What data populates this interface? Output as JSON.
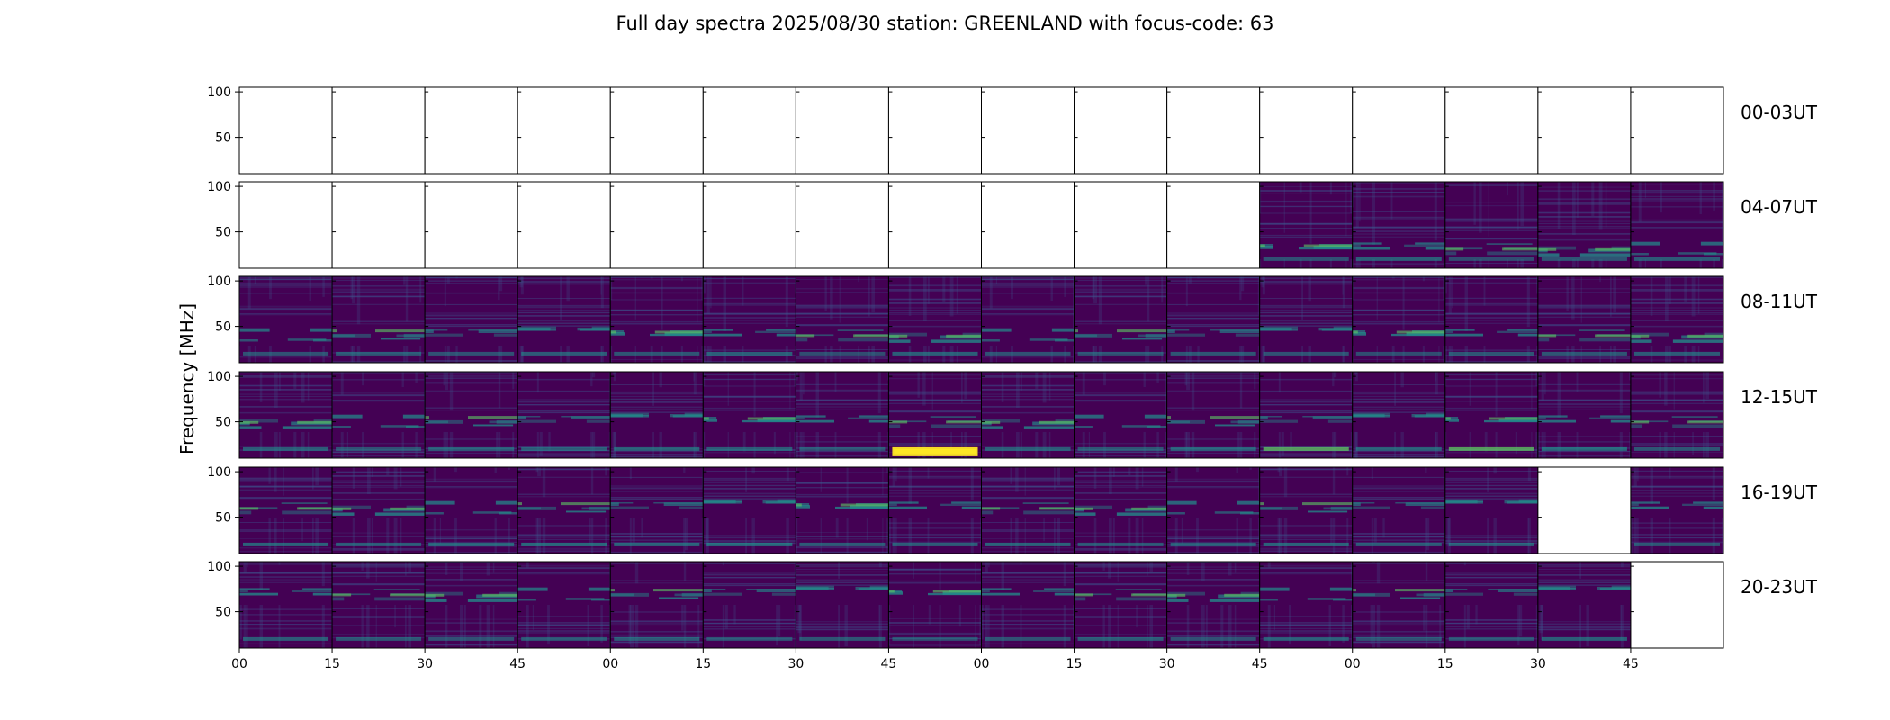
{
  "chart_data": {
    "type": "heatmap",
    "title": "Full day spectra 2025/08/30 station: GREENLAND with focus-code: 63",
    "ylabel": "Frequency [MHz]",
    "xlabel": "",
    "ylim": [
      10,
      105
    ],
    "y_ticks": [
      100,
      50
    ],
    "x_ticks": [
      "00",
      "15",
      "30",
      "45",
      "00",
      "15",
      "30",
      "45",
      "00",
      "15",
      "30",
      "45",
      "00",
      "15",
      "30",
      "45"
    ],
    "panels_per_row": 16,
    "panel_minutes": 15,
    "colormap": [
      "#440154",
      "#3b528b",
      "#21918c",
      "#5ec962",
      "#fde725"
    ],
    "rows": [
      {
        "label": "00-03UT",
        "has_data": [
          0,
          0,
          0,
          0,
          0,
          0,
          0,
          0,
          0,
          0,
          0,
          0,
          0,
          0,
          0,
          0
        ],
        "intensity": [
          0,
          0,
          0,
          0,
          0,
          0,
          0,
          0,
          0,
          0,
          0,
          0,
          0,
          0,
          0,
          0
        ]
      },
      {
        "label": "04-07UT",
        "has_data": [
          0,
          0,
          0,
          0,
          0,
          0,
          0,
          0,
          0,
          0,
          0,
          1,
          1,
          1,
          1,
          1
        ],
        "intensity": [
          0,
          0,
          0,
          0,
          0,
          0,
          0,
          0,
          0,
          0,
          0,
          0.35,
          0.5,
          0.3,
          0.4,
          0.45
        ]
      },
      {
        "label": "08-11UT",
        "has_data": [
          1,
          1,
          1,
          1,
          1,
          1,
          1,
          1,
          1,
          1,
          1,
          1,
          1,
          1,
          1,
          1
        ],
        "intensity": [
          0.35,
          0.4,
          0.35,
          0.45,
          0.4,
          0.5,
          0.3,
          0.5,
          0.35,
          0.3,
          0.4,
          0.35,
          0.3,
          0.4,
          0.4,
          0.45
        ]
      },
      {
        "label": "12-15UT",
        "has_data": [
          1,
          1,
          1,
          1,
          1,
          1,
          1,
          1,
          1,
          1,
          1,
          1,
          1,
          1,
          1,
          1
        ],
        "intensity": [
          0.45,
          0.35,
          0.4,
          0.45,
          0.5,
          0.45,
          0.35,
          1.0,
          0.45,
          0.4,
          0.45,
          0.7,
          0.5,
          0.7,
          0.6,
          0.4
        ]
      },
      {
        "label": "16-19UT",
        "has_data": [
          1,
          1,
          1,
          1,
          1,
          1,
          1,
          1,
          1,
          1,
          1,
          1,
          1,
          1,
          0,
          1
        ],
        "intensity": [
          0.55,
          0.45,
          0.55,
          0.6,
          0.55,
          0.6,
          0.45,
          0.45,
          0.55,
          0.4,
          0.45,
          0.55,
          0.45,
          0.45,
          0,
          0.4
        ]
      },
      {
        "label": "20-23UT",
        "has_data": [
          1,
          1,
          1,
          1,
          1,
          1,
          1,
          1,
          1,
          1,
          1,
          1,
          1,
          1,
          1,
          0
        ],
        "intensity": [
          0.45,
          0.4,
          0.35,
          0.4,
          0.45,
          0.35,
          0.4,
          0.3,
          0.35,
          0.45,
          0.35,
          0.45,
          0.35,
          0.35,
          0.5,
          0
        ]
      }
    ]
  }
}
